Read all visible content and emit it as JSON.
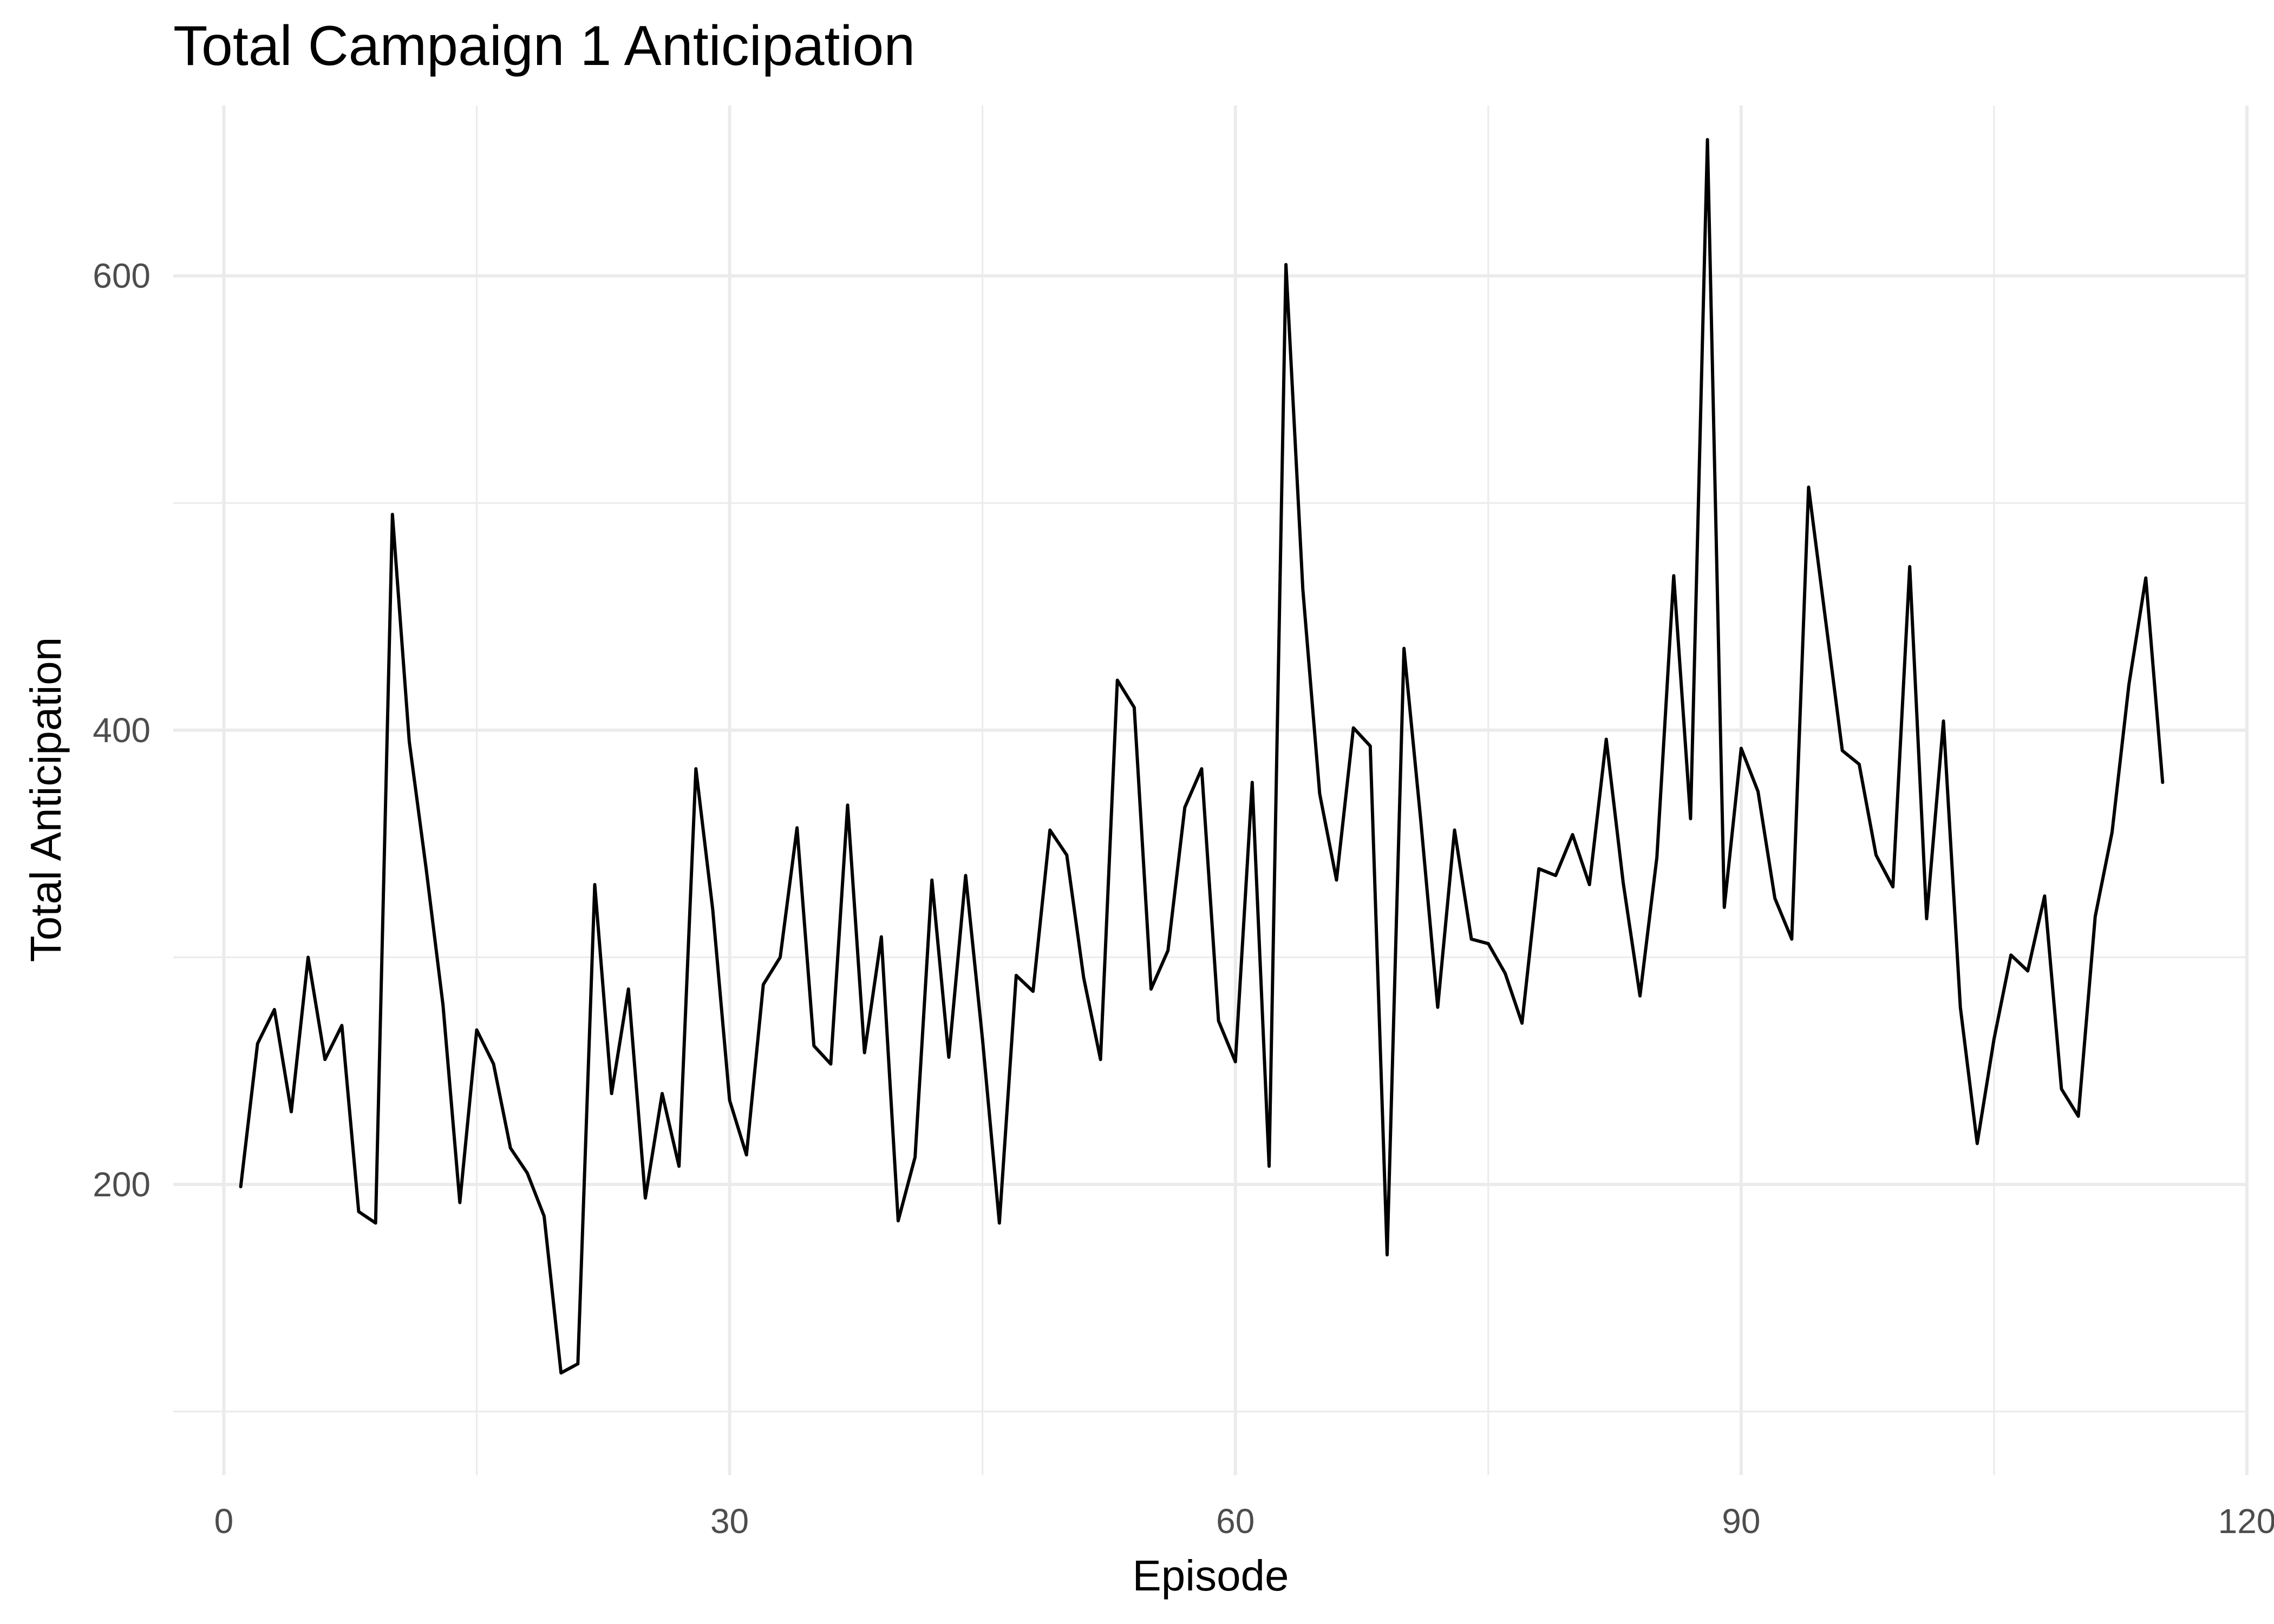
{
  "chart_data": {
    "type": "line",
    "title": "Total Campaign 1 Anticipation",
    "xlabel": "Episode",
    "ylabel": "Total Anticipation",
    "xlim": [
      -3,
      120
    ],
    "ylim": [
      72,
      675
    ],
    "x_ticks": [
      0,
      30,
      60,
      90,
      120
    ],
    "y_ticks": [
      200,
      400,
      600
    ],
    "x_minor_ticks": [
      15,
      45,
      75,
      105
    ],
    "y_minor_ticks": [
      100,
      300,
      500
    ],
    "grid": true,
    "legend": "none",
    "line_color": "#000000",
    "series": [
      {
        "x": [
          1,
          2,
          3,
          4,
          5,
          6,
          7,
          8,
          9,
          10,
          11,
          12,
          13,
          14,
          15,
          16,
          17,
          18,
          19,
          20,
          21,
          22,
          23,
          24,
          25,
          26,
          27,
          28,
          29,
          30,
          31,
          32,
          33,
          34,
          35,
          36,
          37,
          38,
          39,
          40,
          41,
          42,
          43,
          44,
          45,
          46,
          47,
          48,
          49,
          50,
          51,
          52,
          53,
          54,
          55,
          56,
          57,
          58,
          59,
          60,
          61,
          62,
          63,
          64,
          65,
          66,
          67,
          68,
          69,
          70,
          71,
          72,
          73,
          74,
          75,
          76,
          77,
          78,
          79,
          80,
          81,
          82,
          83,
          84,
          85,
          86,
          87,
          88,
          89,
          90,
          91,
          92,
          93,
          94,
          95,
          96,
          97,
          98,
          99,
          100,
          101,
          102,
          103,
          104,
          105,
          106,
          107,
          108,
          109,
          110,
          111,
          112,
          113,
          114,
          115
        ],
        "values": [
          199,
          262,
          277,
          232,
          300,
          255,
          270,
          188,
          183,
          495,
          395,
          339,
          279,
          192,
          268,
          253,
          216,
          205,
          186,
          117,
          121,
          332,
          240,
          286,
          194,
          240,
          208,
          383,
          321,
          237,
          213,
          288,
          300,
          357,
          261,
          253,
          367,
          258,
          309,
          184,
          212,
          334,
          256,
          336,
          264,
          183,
          292,
          285,
          356,
          345,
          291,
          255,
          422,
          410,
          286,
          303,
          366,
          383,
          272,
          254,
          377,
          208,
          605,
          462,
          372,
          334,
          401,
          393,
          169,
          436,
          360,
          278,
          356,
          308,
          306,
          293,
          271,
          339,
          336,
          354,
          332,
          396,
          333,
          283,
          344,
          468,
          361,
          660,
          322,
          392,
          373,
          326,
          308,
          507,
          449,
          391,
          385,
          345,
          331,
          472,
          317,
          404,
          278,
          218,
          264,
          301,
          294,
          327,
          242,
          230,
          318,
          355,
          420,
          467,
          377
        ]
      }
    ]
  }
}
